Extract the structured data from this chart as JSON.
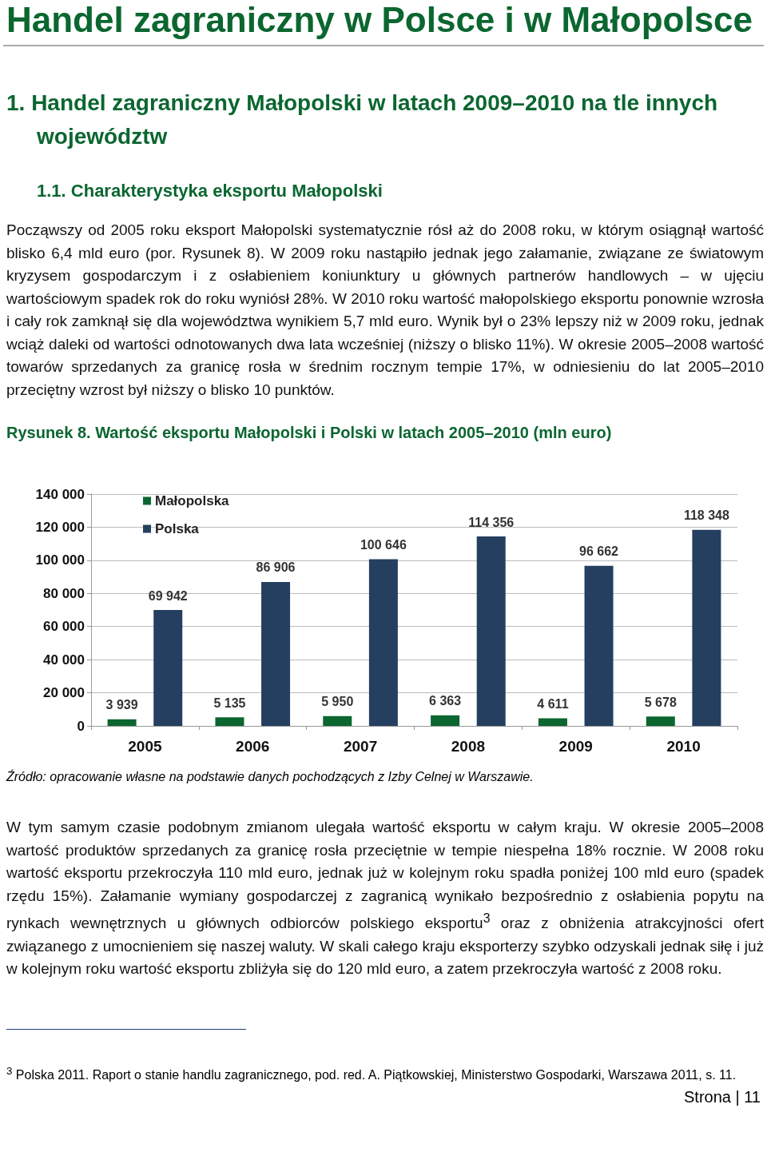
{
  "chart_data": {
    "type": "bar",
    "title": "Handel zagraniczny w Polsce i w Małopolsce",
    "subtitle": "Rysunek 8. Wartość eksportu Małopolski i Polski w latach 2005–2010 (mln euro)",
    "categories": [
      "2005",
      "2006",
      "2007",
      "2008",
      "2009",
      "2010"
    ],
    "series": [
      {
        "name": "Małopolska",
        "color": "#0b6630",
        "values": [
          3939,
          5135,
          5950,
          6363,
          4611,
          5678
        ],
        "value_labels": [
          "3 939",
          "5 135",
          "5 950",
          "6 363",
          "4 611",
          "5 678"
        ]
      },
      {
        "name": "Polska",
        "color": "#243f60",
        "values": [
          69942,
          86906,
          100646,
          114356,
          96662,
          118348
        ],
        "value_labels": [
          "69 942",
          "86 906",
          "100 646",
          "114 356",
          "96 662",
          "118 348"
        ]
      }
    ],
    "ylim": [
      0,
      140000
    ],
    "yticks": [
      {
        "value": 0,
        "label": "0"
      },
      {
        "value": 20000,
        "label": "20 000"
      },
      {
        "value": 40000,
        "label": "40 000"
      },
      {
        "value": 60000,
        "label": "60 000"
      },
      {
        "value": 80000,
        "label": "80 000"
      },
      {
        "value": 100000,
        "label": "100 000"
      },
      {
        "value": 120000,
        "label": "120 000"
      },
      {
        "value": 140000,
        "label": "140 000"
      }
    ],
    "grid": "y",
    "legend": "top left",
    "annotations": [
      "1. Handel zagraniczny Małopolski w latach 2009–2010 na tle innych województw",
      "1.1. Charakterystyka eksportu Małopolski",
      "Począwszy od 2005 roku eksport Małopolski systematycznie rósł aż do 2008 roku, w którym osiągnął wartość blisko 6,4 mld euro (por. Rysunek 8). W 2009 roku nastąpiło jednak jego załamanie, związane ze światowym kryzysem gospodarczym i z osłabieniem koniunktury u głównych partnerów handlowych – w ujęciu wartościowym spadek rok do roku wyniósł 28%. W 2010 roku wartość małopolskiego eksportu ponownie wzrosła i cały rok zamknął się dla województwa wynikiem 5,7 mld euro. Wynik był o 23% lepszy niż w 2009 roku, jednak wciąż daleki od wartości odnotowanych dwa lata wcześniej (niższy o blisko 11%). W okresie 2005–2008 wartość towarów sprzedanych za granicę rosła w średnim rocznym tempie 17%, w odniesieniu do lat 2005–2010 przeciętny wzrost był niższy o blisko 10 punktów.",
      "Źródło: opracowanie własne na podstawie danych pochodzących z Izby Celnej w Warszawie.",
      "W tym samym czasie podobnym zmianom ulegała wartość eksportu w całym kraju. W okresie 2005–2008 wartość produktów sprzedanych za granicę rosła przeciętnie w tempie niespełna 18% rocznie. W 2008 roku wartość eksportu przekroczyła 110 mld euro, jednak już w kolejnym roku spadła poniżej 100 mld euro (spadek rzędu 15%). Załamanie wymiany gospodarczej z zagranicą wynikało bezpośrednio z osłabienia popytu na rynkach wewnętrznych u głównych odbiorców polskiego eksportu$^{3}$ oraz z obniżenia atrakcyjności ofert związanego z umocnieniem się naszej waluty. W skali całego kraju eksporterzy szybko odzyskali jednak siłę i już w kolejnym roku wartość eksportu zbliżyła się do 120 mld euro, a zatem przekroczyła wartość z 2008 roku.",
      "$^{3}$ Polska 2011. Raport o stanie handlu zagranicznego, pod. red. A. Piątkowskiej, Ministerstwo Gospodarki, Warszawa 2011, s. 11.",
      "Strona | 11"
    ]
  }
}
